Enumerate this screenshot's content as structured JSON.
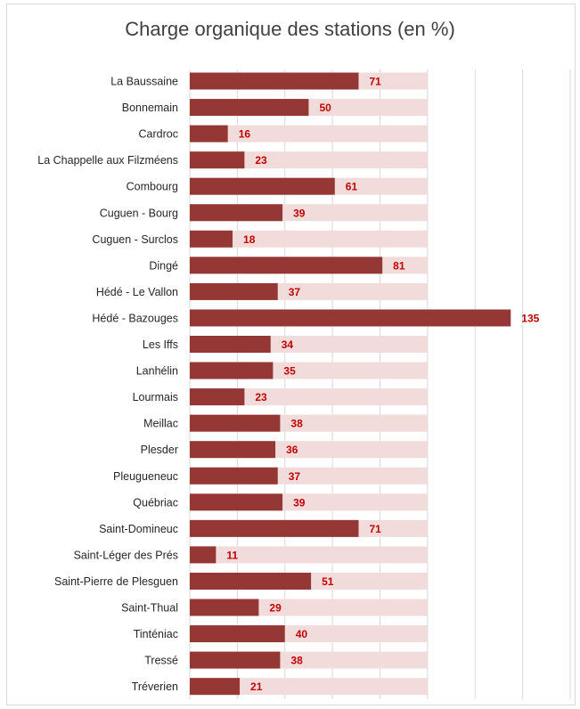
{
  "colors": {
    "bar": "#953735",
    "track": "#f2dcdb",
    "value_label": "#c00000",
    "grid": "#d9d9d9"
  },
  "chart_data": {
    "type": "bar",
    "orientation": "horizontal",
    "title": "Charge organique des stations (en %)",
    "xlabel": "",
    "ylabel": "",
    "xlim": [
      0,
      160
    ],
    "grid": "vertical",
    "background_track_value": 100,
    "categories": [
      "La Baussaine",
      "Bonnemain",
      "Cardroc",
      "La Chappelle aux Filzméens",
      "Combourg",
      "Cuguen - Bourg",
      "Cuguen - Surclos",
      "Dingé",
      "Hédé - Le Vallon",
      "Hédé - Bazouges",
      "Les Iffs",
      "Lanhélin",
      "Lourmais",
      "Meillac",
      "Plesder",
      "Pleugueneuc",
      "Québriac",
      "Saint-Domineuc",
      "Saint-Léger des Prés",
      "Saint-Pierre de Plesguen",
      "Saint-Thual",
      "Tinténiac",
      "Tressé",
      "Tréverien"
    ],
    "values": [
      71,
      50,
      16,
      23,
      61,
      39,
      18,
      81,
      37,
      135,
      34,
      35,
      23,
      38,
      36,
      37,
      39,
      71,
      11,
      51,
      29,
      40,
      38,
      21
    ]
  }
}
